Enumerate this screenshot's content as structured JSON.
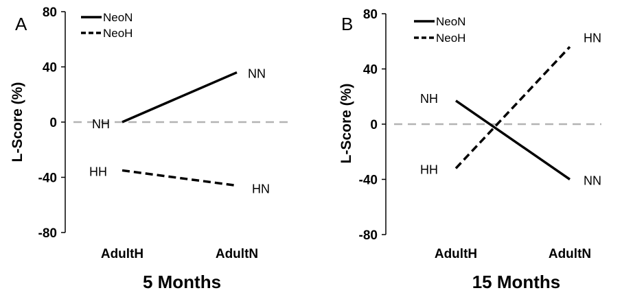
{
  "chart_data": [
    {
      "type": "line",
      "panel_label": "A",
      "title": "5 Months",
      "ylabel": "L-Score (%)",
      "xlabel": "",
      "categories": [
        "AdultH",
        "AdultN"
      ],
      "ylim": [
        -80,
        80
      ],
      "yticks": [
        "80",
        "40",
        "0",
        "-40",
        "-80"
      ],
      "legend_position": "top-left",
      "grid": false,
      "reference_line": 0,
      "series": [
        {
          "name": "NeoN",
          "style": "solid",
          "values": [
            0,
            36
          ],
          "point_labels": [
            "NH",
            "NN"
          ]
        },
        {
          "name": "NeoH",
          "style": "dashed",
          "values": [
            -35,
            -46
          ],
          "point_labels": [
            "HH",
            "HN"
          ]
        }
      ]
    },
    {
      "type": "line",
      "panel_label": "B",
      "title": "15 Months",
      "ylabel": "L-Score (%)",
      "xlabel": "",
      "categories": [
        "AdultH",
        "AdultN"
      ],
      "ylim": [
        -80,
        80
      ],
      "yticks": [
        "80",
        "40",
        "0",
        "-40",
        "-80"
      ],
      "legend_position": "top-left",
      "grid": false,
      "reference_line": 0,
      "series": [
        {
          "name": "NeoN",
          "style": "solid",
          "values": [
            17,
            -40
          ],
          "point_labels": [
            "NH",
            "NN"
          ]
        },
        {
          "name": "NeoH",
          "style": "dashed",
          "values": [
            -32,
            56
          ],
          "point_labels": [
            "HH",
            "HN"
          ]
        }
      ]
    }
  ],
  "colors": {
    "line": "#000000",
    "zero_line": "#b3b3b3",
    "axis": "#000000"
  }
}
